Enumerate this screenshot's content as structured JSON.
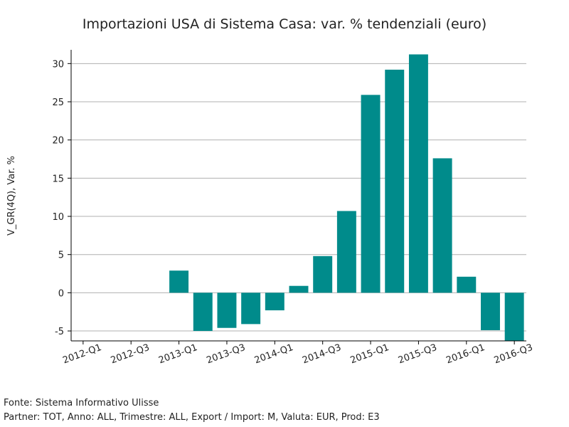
{
  "chart_data": {
    "type": "bar",
    "title": "Importazioni USA di Sistema Casa: var. % tendenziali (euro)",
    "y_label": "V_GR(4Q), Var. %",
    "categories": [
      "2012-Q1",
      null,
      "2012-Q3",
      null,
      "2013-Q1",
      null,
      "2013-Q3",
      null,
      "2014-Q1",
      null,
      "2014-Q3",
      null,
      "2015-Q1",
      null,
      "2015-Q3",
      null,
      "2016-Q1",
      null,
      "2016-Q3"
    ],
    "values": [
      null,
      null,
      null,
      null,
      2.9,
      -5.0,
      -4.6,
      -4.1,
      -2.3,
      0.9,
      4.8,
      10.7,
      25.9,
      29.2,
      31.2,
      17.6,
      2.1,
      -4.9,
      -6.3
    ],
    "color": "#008b8b",
    "ylim": [
      -6.3,
      31.8
    ],
    "yticks": [
      -5,
      0,
      5,
      10,
      15,
      20,
      25,
      30
    ],
    "grid": true,
    "footer": [
      "Fonte: Sistema Informativo Ulisse",
      "Partner: TOT, Anno: ALL, Trimestre: ALL, Export / Import: M, Valuta: EUR, Prod: E3"
    ]
  }
}
